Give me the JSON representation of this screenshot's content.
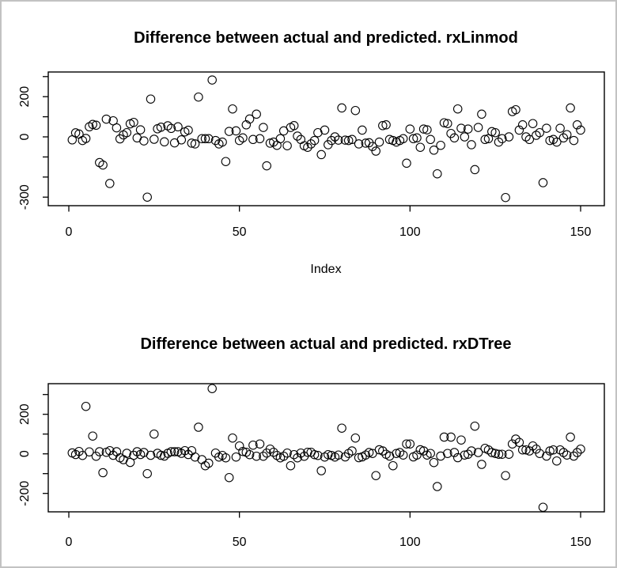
{
  "window": {
    "background_color": "#ffffff",
    "border_color": "#c2c2c2",
    "foreground_color": "#000000"
  },
  "chart_data": [
    {
      "type": "scatter",
      "title": "Difference between actual and predicted. rxLinmod",
      "xlabel": "Index",
      "ylabel": "",
      "marker": "open-circle",
      "marker_color": "#000000",
      "grid": "off",
      "x_note": "x is the observation index 1..150",
      "x_ticks": [
        0,
        50,
        100,
        150
      ],
      "x_tick_labels": [
        "0",
        "50",
        "100",
        "150"
      ],
      "xlim": [
        -6,
        157
      ],
      "y_ticks": [
        300,
        200,
        100,
        0,
        -100,
        -200,
        -300
      ],
      "y_tick_labels": [
        "",
        "200",
        "",
        "0",
        "",
        "",
        "-300"
      ],
      "ylim": [
        -342,
        323
      ],
      "values": [
        -15,
        20,
        14,
        -18,
        -8,
        50,
        62,
        58,
        -128,
        -140,
        88,
        -232,
        80,
        45,
        -10,
        10,
        21,
        65,
        72,
        -5,
        35,
        -20,
        -300,
        188,
        -12,
        40,
        48,
        -25,
        55,
        42,
        -30,
        50,
        -15,
        25,
        33,
        -31,
        -35,
        198,
        -9,
        -9,
        -9,
        283,
        -18,
        -35,
        -26,
        -123,
        27,
        139,
        30,
        -18,
        -5,
        60,
        89,
        -13,
        113,
        -9,
        47,
        -144,
        -31,
        -26,
        -42,
        -9,
        30,
        -44,
        47,
        56,
        4,
        -13,
        -44,
        -52,
        -35,
        -18,
        21,
        -88,
        34,
        -39,
        -18,
        0,
        -16,
        144,
        -16,
        -18,
        -13,
        131,
        -35,
        34,
        -31,
        -29,
        -48,
        -71,
        -26,
        56,
        60,
        -13,
        -18,
        -26,
        -18,
        -9,
        -131,
        39,
        -9,
        -5,
        -52,
        39,
        35,
        -13,
        -66,
        -184,
        -42,
        70,
        66,
        17,
        -5,
        139,
        43,
        0,
        39,
        -39,
        -163,
        47,
        113,
        -13,
        -9,
        26,
        21,
        -26,
        -9,
        -302,
        0,
        126,
        135,
        34,
        60,
        0,
        -13,
        66,
        8,
        21,
        -228,
        43,
        -18,
        -13,
        -26,
        43,
        -5,
        11,
        144,
        -18,
        60,
        34
      ]
    },
    {
      "type": "scatter",
      "title": "Difference between actual and predicted. rxDTree",
      "xlabel": "",
      "ylabel": "",
      "marker": "open-circle",
      "marker_color": "#000000",
      "grid": "off",
      "x_note": "x is the observation index 1..150",
      "x_ticks": [
        0,
        50,
        100,
        150
      ],
      "x_tick_labels": [
        "0",
        "50",
        "100",
        "150"
      ],
      "xlim": [
        -6,
        157
      ],
      "y_ticks": [
        300,
        200,
        100,
        0,
        -100,
        -200
      ],
      "y_tick_labels": [
        "",
        "200",
        "",
        "0",
        "",
        "-200"
      ],
      "ylim": [
        -293,
        355
      ],
      "values": [
        5,
        -3,
        12,
        -8,
        240,
        10,
        90,
        -12,
        11,
        -95,
        8,
        16,
        -7,
        11,
        -20,
        -29,
        3,
        -43,
        -7,
        11,
        -3,
        7,
        -100,
        -7,
        100,
        3,
        -7,
        -11,
        3,
        11,
        11,
        11,
        3,
        16,
        -3,
        16,
        -16,
        135,
        -29,
        -60,
        -47,
        330,
        4,
        -16,
        -8,
        -20,
        -120,
        80,
        -16,
        40,
        12,
        8,
        -4,
        44,
        -12,
        50,
        -12,
        4,
        24,
        8,
        -8,
        -20,
        -12,
        4,
        -60,
        -4,
        -20,
        4,
        -12,
        8,
        8,
        -4,
        -8,
        -85,
        -16,
        -4,
        -8,
        -16,
        -6,
        130,
        -15,
        2,
        15,
        80,
        -19,
        -15,
        -6,
        7,
        2,
        -110,
        21,
        15,
        -2,
        -11,
        -60,
        2,
        7,
        -6,
        50,
        50,
        -15,
        -6,
        21,
        15,
        -6,
        2,
        -44,
        -165,
        -11,
        85,
        2,
        85,
        7,
        -19,
        70,
        -6,
        -2,
        15,
        140,
        7,
        -53,
        28,
        20,
        7,
        2,
        -2,
        -2,
        -110,
        -2,
        50,
        75,
        58,
        20,
        20,
        15,
        40,
        24,
        2,
        -270,
        -11,
        15,
        20,
        -36,
        20,
        7,
        -6,
        85,
        -11,
        7,
        24
      ]
    }
  ]
}
